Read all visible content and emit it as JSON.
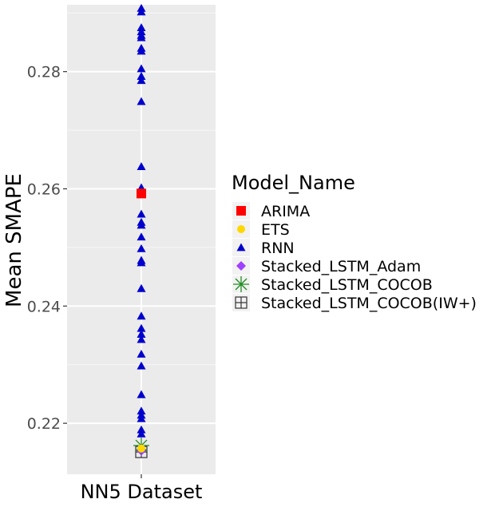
{
  "chart_data": {
    "type": "scatter",
    "title": "",
    "xlabel": "",
    "ylabel": "Mean SMAPE",
    "categories": [
      "NN5 Dataset"
    ],
    "ylim": [
      0.2113,
      0.2914
    ],
    "yticks": [
      "0.22",
      "0.24",
      "0.26",
      "0.28"
    ],
    "ytick_values": [
      0.22,
      0.24,
      0.26,
      0.28
    ],
    "grid": true,
    "legend": {
      "title": "Model_Name",
      "placement": "right",
      "entries": [
        {
          "name": "ARIMA",
          "color": "#ff0000",
          "shape": "square"
        },
        {
          "name": "ETS",
          "color": "#ffd700",
          "shape": "circle"
        },
        {
          "name": "RNN",
          "color": "#0000cd",
          "shape": "triangle"
        },
        {
          "name": "Stacked_LSTM_Adam",
          "color": "#a040ff",
          "shape": "diamond"
        },
        {
          "name": "Stacked_LSTM_COCOB",
          "color": "#228b22",
          "shape": "asterisk"
        },
        {
          "name": "Stacked_LSTM_COCOB(IW+)",
          "color": "#333333",
          "shape": "boxplus"
        }
      ]
    },
    "series": [
      {
        "name": "ARIMA",
        "values": [
          0.2592
        ]
      },
      {
        "name": "ETS",
        "values": [
          0.2157
        ]
      },
      {
        "name": "RNN",
        "values": [
          0.2908,
          0.2902,
          0.2875,
          0.2868,
          0.2862,
          0.2858,
          0.284,
          0.2835,
          0.2805,
          0.2792,
          0.2785,
          0.2749,
          0.2638,
          0.2602,
          0.2557,
          0.2543,
          0.2538,
          0.2518,
          0.2498,
          0.2478,
          0.2474,
          0.243,
          0.2383,
          0.2362,
          0.2352,
          0.2343,
          0.2318,
          0.2298,
          0.2249,
          0.2221,
          0.2214,
          0.2208,
          0.2189,
          0.2182
        ]
      },
      {
        "name": "Stacked_LSTM_Adam",
        "values": [
          0.2153
        ]
      },
      {
        "name": "Stacked_LSTM_COCOB",
        "values": [
          0.2162
        ]
      },
      {
        "name": "Stacked_LSTM_COCOB(IW+)",
        "values": [
          0.2151
        ]
      }
    ]
  }
}
